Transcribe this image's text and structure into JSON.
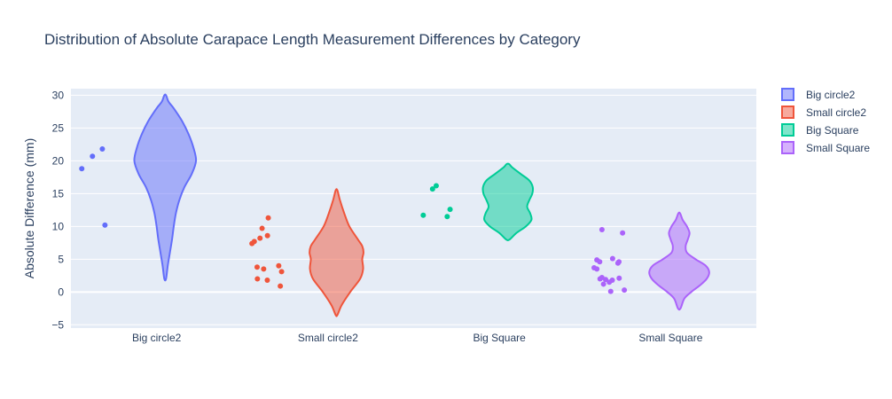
{
  "chart_data": {
    "type": "violin",
    "title": "Distribution of Absolute Carapace Length Measurement Differences by Category",
    "xlabel": "",
    "ylabel": "Absolute Difference (mm)",
    "ylim": [
      -5.5,
      31
    ],
    "yticks": [
      -5,
      0,
      5,
      10,
      15,
      20,
      25,
      30
    ],
    "grid": true,
    "legend_position": "top-right",
    "categories": [
      "Big circle2",
      "Small circle2",
      "Big Square",
      "Small Square"
    ],
    "series": [
      {
        "name": "Big circle2",
        "color": "#636efa",
        "points": [
          21.8,
          18.8,
          20.7,
          10.2
        ],
        "violin": {
          "min": 2.0,
          "max": 30.0,
          "profile": [
            [
              2,
              0.02
            ],
            [
              4,
              0.06
            ],
            [
              6,
              0.11
            ],
            [
              8,
              0.16
            ],
            [
              10,
              0.2
            ],
            [
              12,
              0.25
            ],
            [
              14,
              0.33
            ],
            [
              16,
              0.45
            ],
            [
              18,
              0.62
            ],
            [
              20,
              0.72
            ],
            [
              22,
              0.66
            ],
            [
              24,
              0.55
            ],
            [
              26,
              0.4
            ],
            [
              28,
              0.2
            ],
            [
              29,
              0.08
            ],
            [
              30,
              0.02
            ]
          ]
        }
      },
      {
        "name": "Small circle2",
        "color": "#ef553b",
        "points": [
          11.3,
          9.7,
          8.2,
          8.6,
          7.7,
          7.4,
          4.0,
          3.8,
          3.5,
          3.1,
          2.0,
          1.8,
          0.9
        ],
        "violin": {
          "min": -3.5,
          "max": 15.5,
          "profile": [
            [
              -3.5,
              0.02
            ],
            [
              -2,
              0.12
            ],
            [
              0,
              0.32
            ],
            [
              2,
              0.55
            ],
            [
              3.5,
              0.62
            ],
            [
              5,
              0.6
            ],
            [
              6,
              0.63
            ],
            [
              7,
              0.6
            ],
            [
              8,
              0.5
            ],
            [
              10,
              0.3
            ],
            [
              12,
              0.18
            ],
            [
              14,
              0.08
            ],
            [
              15.5,
              0.02
            ]
          ]
        }
      },
      {
        "name": "Big Square",
        "color": "#00cc96",
        "points": [
          16.2,
          15.7,
          12.6,
          11.7,
          11.5
        ],
        "violin": {
          "min": 8.0,
          "max": 19.5,
          "profile": [
            [
              8,
              0.04
            ],
            [
              9,
              0.2
            ],
            [
              10,
              0.42
            ],
            [
              11,
              0.55
            ],
            [
              12,
              0.52
            ],
            [
              13,
              0.45
            ],
            [
              14,
              0.5
            ],
            [
              15,
              0.57
            ],
            [
              16,
              0.58
            ],
            [
              17,
              0.5
            ],
            [
              18,
              0.3
            ],
            [
              19,
              0.1
            ],
            [
              19.5,
              0.03
            ]
          ]
        }
      },
      {
        "name": "Small Square",
        "color": "#ab63fa",
        "points": [
          9.5,
          9.0,
          5.1,
          4.9,
          4.6,
          4.6,
          4.4,
          3.7,
          3.5,
          2.2,
          2.1,
          2.0,
          1.9,
          1.8,
          1.5,
          1.2,
          0.3,
          0.1
        ],
        "violin": {
          "min": -2.5,
          "max": 12.0,
          "profile": [
            [
              -2.5,
              0.03
            ],
            [
              -1,
              0.12
            ],
            [
              0,
              0.28
            ],
            [
              1,
              0.48
            ],
            [
              2,
              0.64
            ],
            [
              3,
              0.7
            ],
            [
              4,
              0.62
            ],
            [
              5,
              0.38
            ],
            [
              6,
              0.18
            ],
            [
              7,
              0.15
            ],
            [
              8,
              0.2
            ],
            [
              9,
              0.24
            ],
            [
              10,
              0.18
            ],
            [
              11,
              0.08
            ],
            [
              12,
              0.02
            ]
          ]
        }
      }
    ]
  }
}
